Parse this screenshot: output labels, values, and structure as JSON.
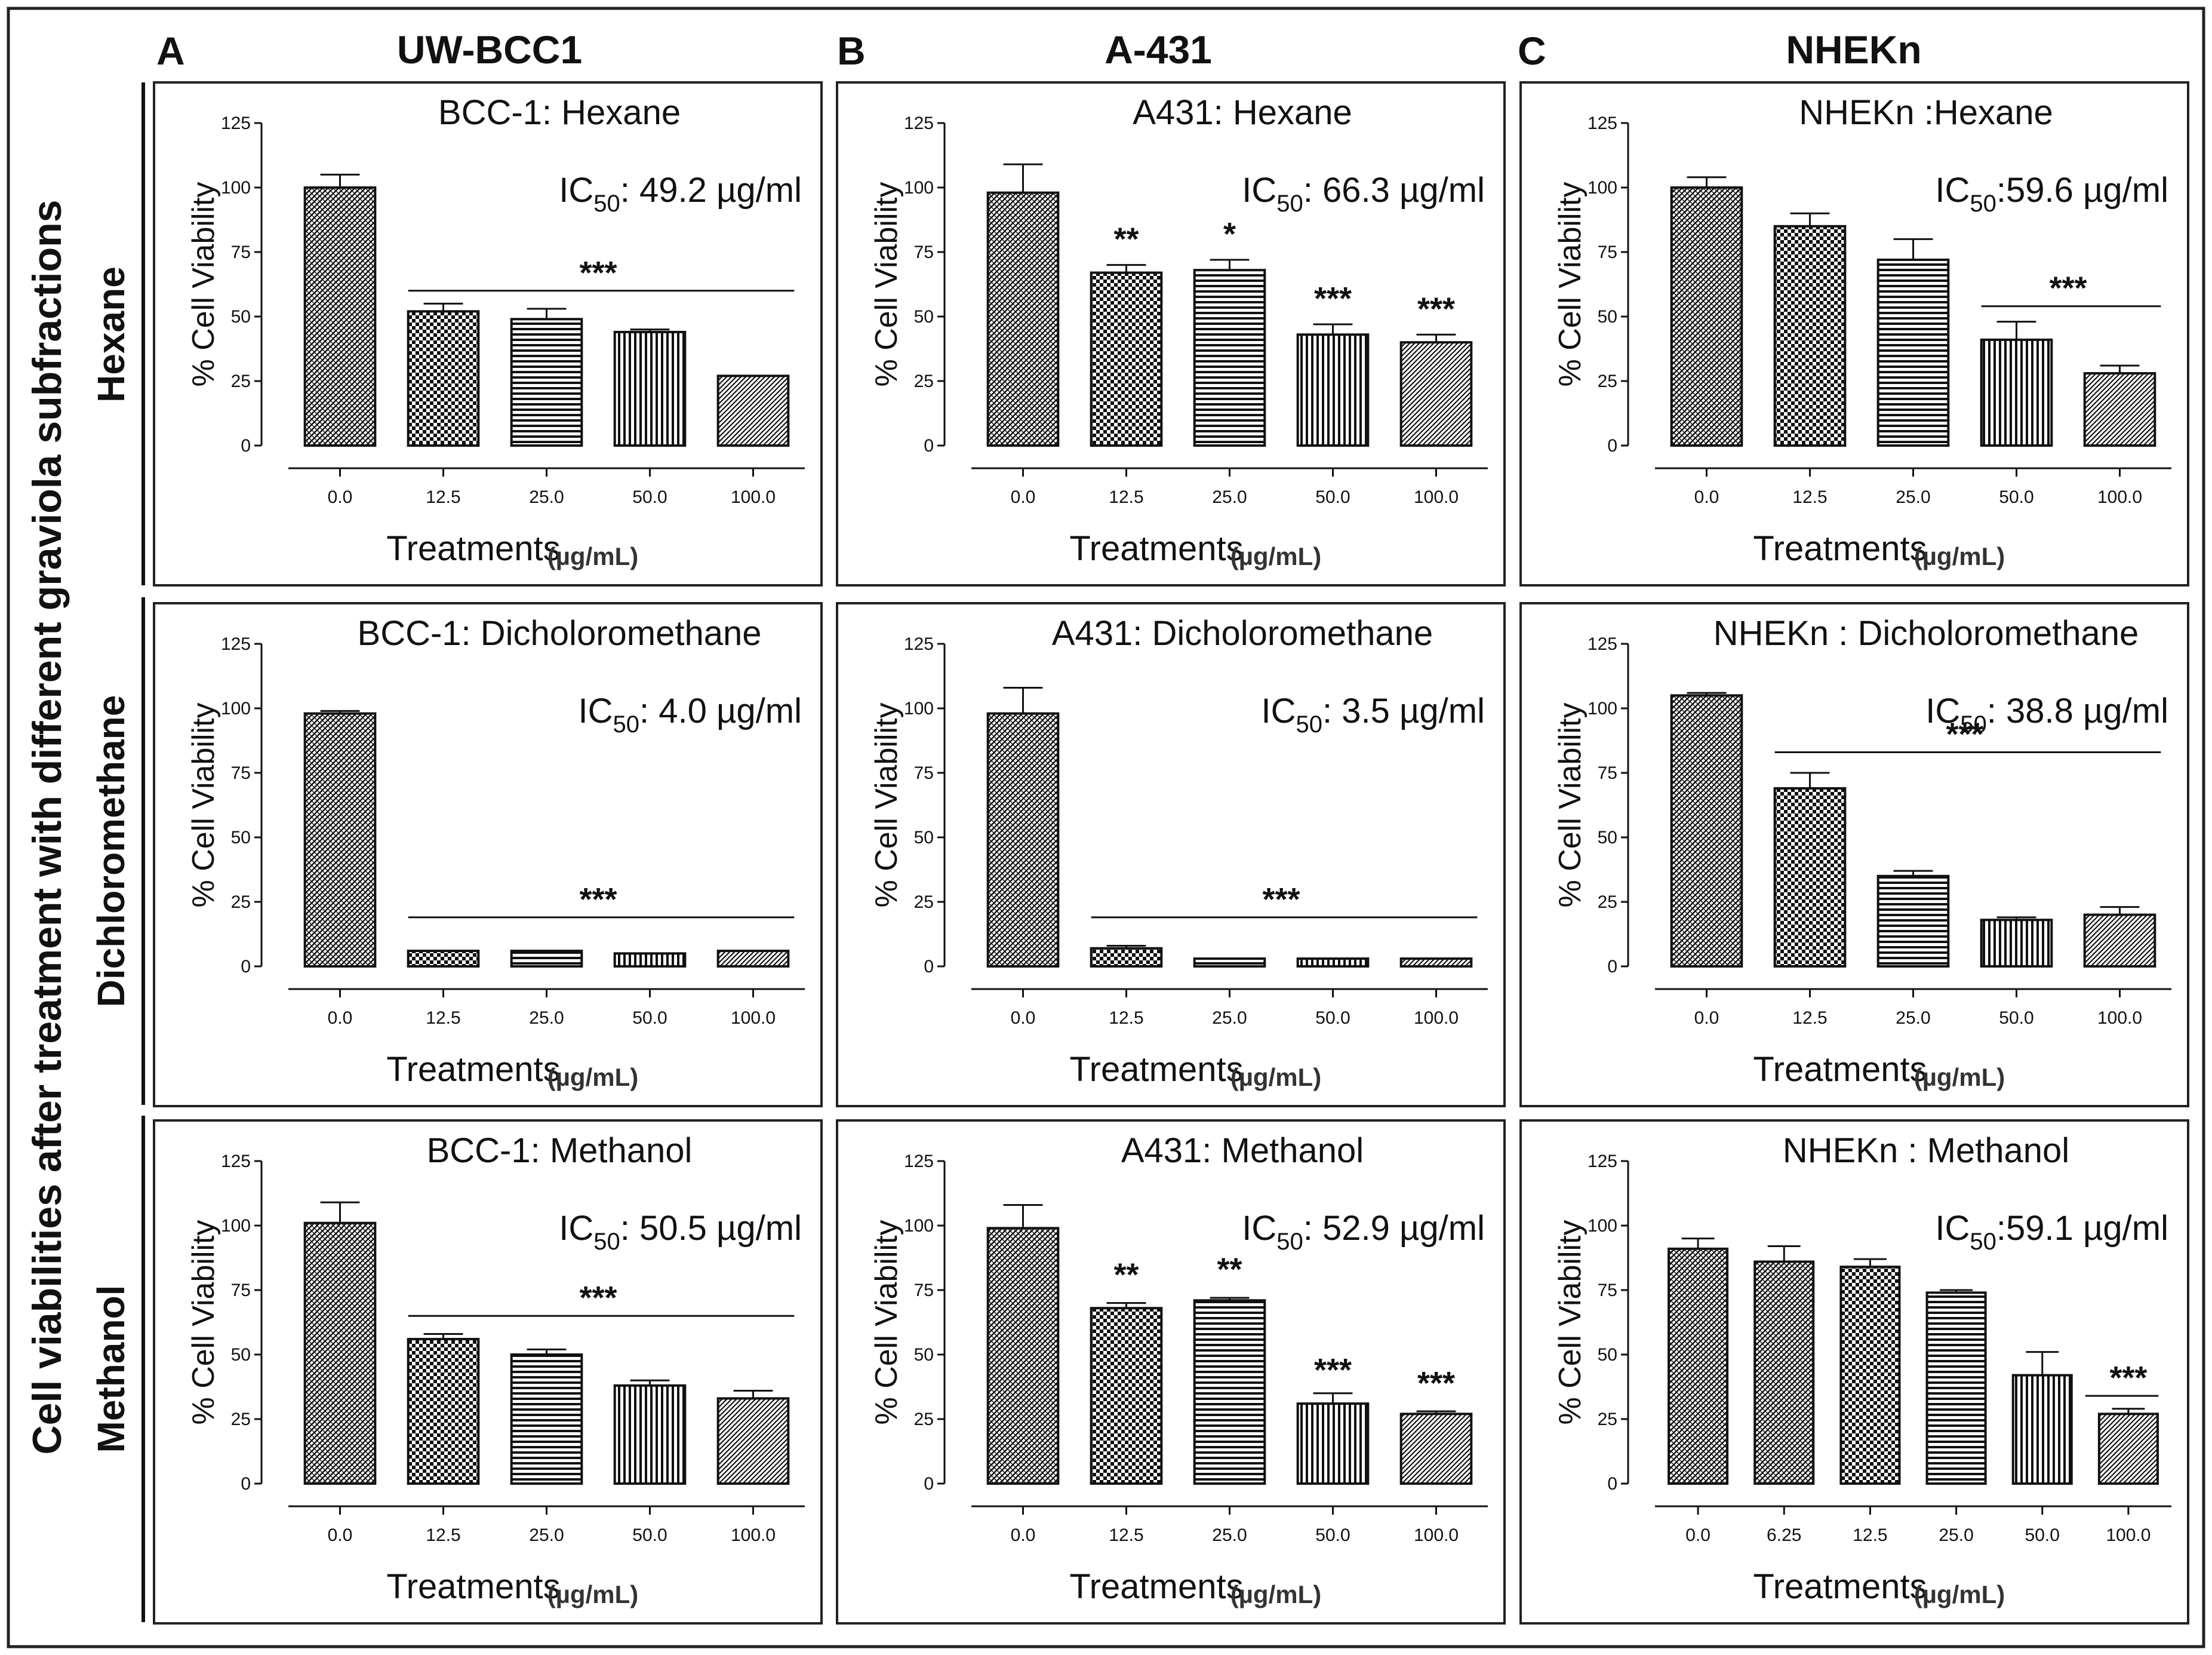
{
  "figure": {
    "y_label": "Cell viabilities after treatment with different graviola subfractions",
    "columns": [
      {
        "letter": "A",
        "cell_line": "UW-BCC1"
      },
      {
        "letter": "B",
        "cell_line": "A-431"
      },
      {
        "letter": "C",
        "cell_line": "NHEKn"
      }
    ],
    "rows": [
      "Hexane",
      "Dichloromethane",
      "Methanol"
    ]
  },
  "chart_data": [
    {
      "type": "bar",
      "title": "BCC-1: Hexane",
      "ic50_prefix": "IC",
      "ic50_sub": "50",
      "ic50_value": ": 49.2 µg/ml",
      "categories": [
        "0.0",
        "12.5",
        "25.0",
        "50.0",
        "100.0"
      ],
      "values": [
        100,
        52,
        49,
        44,
        27
      ],
      "errors": [
        5,
        3,
        4,
        1,
        0
      ],
      "significance": [
        {
          "text": "***",
          "from": 1,
          "to": 4,
          "y": 60,
          "line": true
        }
      ],
      "ylabel": "% Cell Viability",
      "xlabel": "Treatments",
      "xunit": "(µg/mL)",
      "ylim": [
        0,
        125
      ],
      "yticks": [
        "0",
        "25",
        "50",
        "75",
        "100",
        "125"
      ]
    },
    {
      "type": "bar",
      "title": "A431: Hexane",
      "ic50_prefix": "IC",
      "ic50_sub": "50",
      "ic50_value": ": 66.3 µg/ml",
      "categories": [
        "0.0",
        "12.5",
        "25.0",
        "50.0",
        "100.0"
      ],
      "values": [
        98,
        67,
        68,
        43,
        40
      ],
      "errors": [
        11,
        3,
        4,
        4,
        3
      ],
      "significance": [
        {
          "text": "**",
          "from": 1,
          "to": 1,
          "y": 73,
          "line": false
        },
        {
          "text": "*",
          "from": 2,
          "to": 2,
          "y": 75,
          "line": false
        },
        {
          "text": "***",
          "from": 3,
          "to": 3,
          "y": 50,
          "line": false
        },
        {
          "text": "***",
          "from": 4,
          "to": 4,
          "y": 46,
          "line": false
        }
      ],
      "ylabel": "% Cell Viability",
      "xlabel": "Treatments",
      "xunit": "(µg/mL)",
      "ylim": [
        0,
        125
      ],
      "yticks": [
        "0",
        "25",
        "50",
        "75",
        "100",
        "125"
      ]
    },
    {
      "type": "bar",
      "title": "NHEKn :Hexane",
      "ic50_prefix": "IC",
      "ic50_sub": "50",
      "ic50_value": ":59.6 µg/ml",
      "categories": [
        "0.0",
        "12.5",
        "25.0",
        "50.0",
        "100.0"
      ],
      "values": [
        100,
        85,
        72,
        41,
        28
      ],
      "errors": [
        4,
        5,
        8,
        7,
        3
      ],
      "significance": [
        {
          "text": "***",
          "from": 3,
          "to": 4,
          "y": 54,
          "line": true
        }
      ],
      "ylabel": "% Cell Viability",
      "xlabel": "Treatments",
      "xunit": "(µg/mL)",
      "ylim": [
        0,
        125
      ],
      "yticks": [
        "0",
        "25",
        "50",
        "75",
        "100",
        "125"
      ]
    },
    {
      "type": "bar",
      "title": "BCC-1: Dicholoromethane",
      "ic50_prefix": "IC",
      "ic50_sub": "50",
      "ic50_value": ": 4.0 µg/ml",
      "categories": [
        "0.0",
        "12.5",
        "25.0",
        "50.0",
        "100.0"
      ],
      "values": [
        98,
        6,
        6,
        5,
        6
      ],
      "errors": [
        1,
        0,
        0,
        0,
        0
      ],
      "significance": [
        {
          "text": "***",
          "from": 1,
          "to": 4,
          "y": 19,
          "line": true
        }
      ],
      "ylabel": "% Cell Viability",
      "xlabel": "Treatments",
      "xunit": "(µg/mL)",
      "ylim": [
        0,
        125
      ],
      "yticks": [
        "0",
        "25",
        "50",
        "75",
        "100",
        "125"
      ]
    },
    {
      "type": "bar",
      "title": "A431: Dicholoromethane",
      "ic50_prefix": "IC",
      "ic50_sub": "50",
      "ic50_value": ": 3.5 µg/ml",
      "categories": [
        "0.0",
        "12.5",
        "25.0",
        "50.0",
        "100.0"
      ],
      "values": [
        98,
        7,
        3,
        3,
        3
      ],
      "errors": [
        10,
        1,
        0,
        0,
        0
      ],
      "significance": [
        {
          "text": "***",
          "from": 1,
          "to": 4,
          "y": 19,
          "line": true
        }
      ],
      "ylabel": "% Cell Viability",
      "xlabel": "Treatments",
      "xunit": "(µg/mL)",
      "ylim": [
        0,
        125
      ],
      "yticks": [
        "0",
        "25",
        "50",
        "75",
        "100",
        "125"
      ]
    },
    {
      "type": "bar",
      "title": "NHEKn : Dicholoromethane",
      "ic50_prefix": "IC",
      "ic50_sub": "50",
      "ic50_value": ": 38.8 µg/ml",
      "categories": [
        "0.0",
        "12.5",
        "25.0",
        "50.0",
        "100.0"
      ],
      "values": [
        105,
        69,
        35,
        18,
        20
      ],
      "errors": [
        1,
        6,
        2,
        1,
        3
      ],
      "significance": [
        {
          "text": "***",
          "from": 1,
          "to": 4,
          "y": 83,
          "line": true
        }
      ],
      "ylabel": "% Cell Viability",
      "xlabel": "Treatments",
      "xunit": "(µg/mL)",
      "ylim": [
        0,
        125
      ],
      "yticks": [
        "0",
        "25",
        "50",
        "75",
        "100",
        "125"
      ]
    },
    {
      "type": "bar",
      "title": "BCC-1: Methanol",
      "ic50_prefix": "IC",
      "ic50_sub": "50",
      "ic50_value": ": 50.5 µg/ml",
      "categories": [
        "0.0",
        "12.5",
        "25.0",
        "50.0",
        "100.0"
      ],
      "values": [
        101,
        56,
        50,
        38,
        33
      ],
      "errors": [
        8,
        2,
        2,
        2,
        3
      ],
      "significance": [
        {
          "text": "***",
          "from": 1,
          "to": 4,
          "y": 65,
          "line": true
        }
      ],
      "ylabel": "% Cell Viability",
      "xlabel": "Treatments",
      "xunit": "(µg/mL)",
      "ylim": [
        0,
        125
      ],
      "yticks": [
        "0",
        "25",
        "50",
        "75",
        "100",
        "125"
      ]
    },
    {
      "type": "bar",
      "title": "A431: Methanol",
      "ic50_prefix": "IC",
      "ic50_sub": "50",
      "ic50_value": ": 52.9 µg/ml",
      "categories": [
        "0.0",
        "12.5",
        "25.0",
        "50.0",
        "100.0"
      ],
      "values": [
        99,
        68,
        71,
        31,
        27
      ],
      "errors": [
        9,
        2,
        1,
        4,
        1
      ],
      "significance": [
        {
          "text": "**",
          "from": 1,
          "to": 1,
          "y": 74,
          "line": false
        },
        {
          "text": "**",
          "from": 2,
          "to": 2,
          "y": 76,
          "line": false
        },
        {
          "text": "***",
          "from": 3,
          "to": 3,
          "y": 37,
          "line": false
        },
        {
          "text": "***",
          "from": 4,
          "to": 4,
          "y": 32,
          "line": false
        }
      ],
      "ylabel": "% Cell Viability",
      "xlabel": "Treatments",
      "xunit": "(µg/mL)",
      "ylim": [
        0,
        125
      ],
      "yticks": [
        "0",
        "25",
        "50",
        "75",
        "100",
        "125"
      ]
    },
    {
      "type": "bar",
      "title": "NHEKn : Methanol",
      "ic50_prefix": "IC",
      "ic50_sub": "50",
      "ic50_value": ":59.1 µg/ml",
      "categories": [
        "0.0",
        "6.25",
        "12.5",
        "25.0",
        "50.0",
        "100.0"
      ],
      "values": [
        91,
        86,
        84,
        74,
        42,
        27
      ],
      "errors": [
        4,
        6,
        3,
        1,
        9,
        2
      ],
      "significance": [
        {
          "text": "***",
          "from": 5,
          "to": 5,
          "y": 34,
          "line": true
        }
      ],
      "ylabel": "% Cell Viability",
      "xlabel": "Treatments",
      "xunit": "(µg/mL)",
      "ylim": [
        0,
        125
      ],
      "yticks": [
        "0",
        "25",
        "50",
        "75",
        "100",
        "125"
      ]
    }
  ]
}
